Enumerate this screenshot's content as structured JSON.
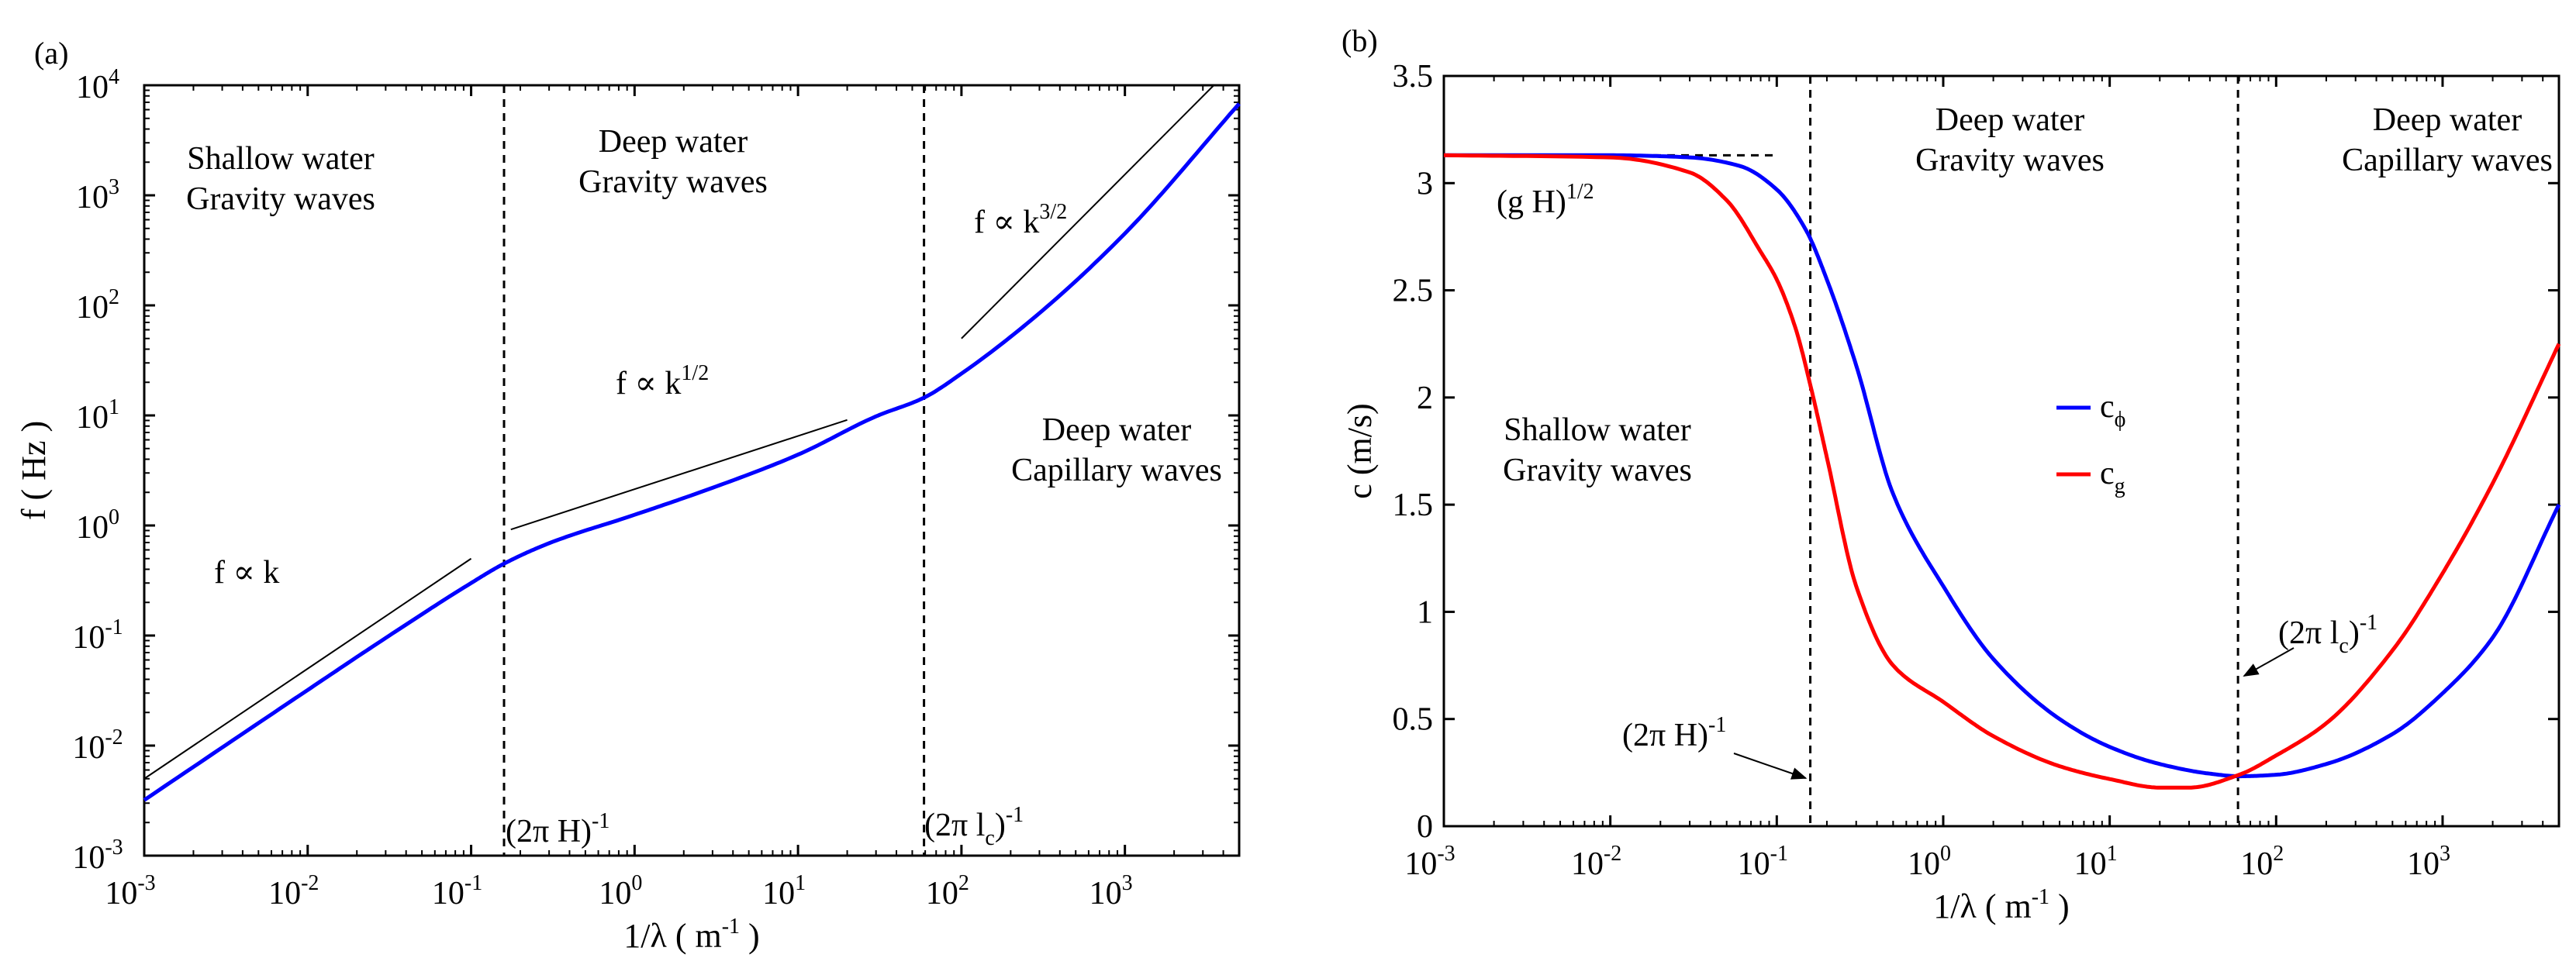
{
  "chart_data": [
    {
      "type": "line",
      "panel_label": "(a)",
      "xscale": "log",
      "yscale": "log",
      "xlim": [
        0.001,
        5000
      ],
      "ylim": [
        0.001,
        10000
      ],
      "x_ticks": [
        {
          "b": "10",
          "e": "-3"
        },
        {
          "b": "10",
          "e": "-2"
        },
        {
          "b": "10",
          "e": "-1"
        },
        {
          "b": "10",
          "e": "0"
        },
        {
          "b": "10",
          "e": "1"
        },
        {
          "b": "10",
          "e": "2"
        },
        {
          "b": "10",
          "e": "3"
        }
      ],
      "y_ticks": [
        {
          "b": "10",
          "e": "-3"
        },
        {
          "b": "10",
          "e": "-2"
        },
        {
          "b": "10",
          "e": "-1"
        },
        {
          "b": "10",
          "e": "0"
        },
        {
          "b": "10",
          "e": "1"
        },
        {
          "b": "10",
          "e": "2"
        },
        {
          "b": "10",
          "e": "3"
        },
        {
          "b": "10",
          "e": "4"
        }
      ],
      "xlabel": {
        "main": "1/λ  ( m",
        "sup": "-1",
        "tail": " )"
      },
      "ylabel": "f  ( Hz )",
      "series": [
        {
          "name": "f",
          "color": "#0000ff",
          "x": [
            0.001,
            0.01,
            0.03,
            0.1,
            0.159,
            0.3,
            1,
            3,
            10,
            30,
            59,
            100,
            300,
            1000,
            5000
          ],
          "y": [
            0.0032,
            0.032,
            0.095,
            0.3,
            0.45,
            0.69,
            1.25,
            2.2,
            4.4,
            9.8,
            14.5,
            24,
            85,
            450,
            6800
          ]
        }
      ],
      "reference_lines": [
        {
          "name": "f ∝ k",
          "x": [
            0.001,
            0.1
          ],
          "y": [
            0.005,
            0.5
          ]
        },
        {
          "name": "f ∝ k^1/2",
          "x": [
            0.175,
            20
          ],
          "y": [
            0.92,
            9.1
          ]
        },
        {
          "name": "f ∝ k^3/2",
          "x": [
            100,
            3500
          ],
          "y": [
            50,
            10000
          ]
        }
      ],
      "vlines": [
        0.159,
        59
      ],
      "annotations": {
        "shallow": [
          "Shallow water",
          "Gravity waves"
        ],
        "deep_gravity": [
          "Deep water",
          "Gravity waves"
        ],
        "deep_capillary": [
          "Deep water",
          "Capillary waves"
        ],
        "law_k": "f ∝ k",
        "law_k12": {
          "main": "f ∝ k",
          "sup": "1/2"
        },
        "law_k32": {
          "main": "f ∝ k",
          "sup": "3/2"
        },
        "label_H": {
          "main": "(2π H)",
          "sup": "-1"
        },
        "label_lc": {
          "main": "(2π l",
          "sub": "c",
          "close": ")",
          "sup": "-1"
        }
      }
    },
    {
      "type": "line",
      "panel_label": "(b)",
      "xscale": "log",
      "xlim": [
        0.001,
        5000
      ],
      "ylim": [
        0,
        3.5
      ],
      "x_ticks": [
        {
          "b": "10",
          "e": "-3"
        },
        {
          "b": "10",
          "e": "-2"
        },
        {
          "b": "10",
          "e": "-1"
        },
        {
          "b": "10",
          "e": "0"
        },
        {
          "b": "10",
          "e": "1"
        },
        {
          "b": "10",
          "e": "2"
        },
        {
          "b": "10",
          "e": "3"
        }
      ],
      "y_ticks": [
        "0",
        "0.5",
        "1",
        "1.5",
        "2",
        "2.5",
        "3",
        "3.5"
      ],
      "xlabel": {
        "main": "1/λ  ( m",
        "sup": "-1",
        "tail": " )"
      },
      "ylabel": "c  (m/s)",
      "series": [
        {
          "name": "c_ϕ",
          "color": "#0000ff",
          "x": [
            0.001,
            0.01,
            0.03,
            0.06,
            0.1,
            0.15,
            0.2,
            0.3,
            0.5,
            1,
            2,
            5,
            10,
            20,
            40,
            60,
            100,
            200,
            500,
            1000,
            2000,
            5000
          ],
          "y": [
            3.13,
            3.13,
            3.12,
            3.08,
            2.97,
            2.78,
            2.55,
            2.15,
            1.55,
            1.12,
            0.78,
            0.5,
            0.37,
            0.29,
            0.245,
            0.233,
            0.24,
            0.29,
            0.43,
            0.62,
            0.88,
            1.5
          ]
        },
        {
          "name": "c_g",
          "color": "#ff0000",
          "x": [
            0.001,
            0.01,
            0.03,
            0.05,
            0.08,
            0.1,
            0.13,
            0.16,
            0.2,
            0.3,
            0.5,
            1,
            2,
            5,
            10,
            20,
            30,
            60,
            100,
            200,
            500,
            1000,
            2000,
            5000
          ],
          "y": [
            3.13,
            3.12,
            3.05,
            2.92,
            2.68,
            2.55,
            2.32,
            2.05,
            1.72,
            1.12,
            0.75,
            0.58,
            0.42,
            0.28,
            0.22,
            0.18,
            0.18,
            0.24,
            0.33,
            0.48,
            0.82,
            1.18,
            1.6,
            2.25
          ]
        }
      ],
      "reference_lines": [
        {
          "name": "(g H)^1/2",
          "x": [
            0.001,
            0.1
          ],
          "y": [
            3.13,
            3.13
          ]
        }
      ],
      "vlines": [
        0.159,
        59
      ],
      "legend": {
        "position": "center-right",
        "entries": [
          {
            "main": "c",
            "sub": "ϕ",
            "color": "#0000ff"
          },
          {
            "main": "c",
            "sub": "g",
            "color": "#ff0000"
          }
        ]
      },
      "annotations": {
        "shallow": [
          "Shallow water",
          "Gravity waves"
        ],
        "deep_gravity": [
          "Deep water",
          "Gravity waves"
        ],
        "deep_capillary": [
          "Deep water",
          "Capillary waves"
        ],
        "gH": {
          "main": "(g H)",
          "sup": "1/2"
        },
        "label_H": {
          "main": "(2π H)",
          "sup": "-1"
        },
        "label_lc": {
          "main": "(2π l",
          "sub": "c",
          "close": ")",
          "sup": "-1"
        }
      }
    }
  ]
}
